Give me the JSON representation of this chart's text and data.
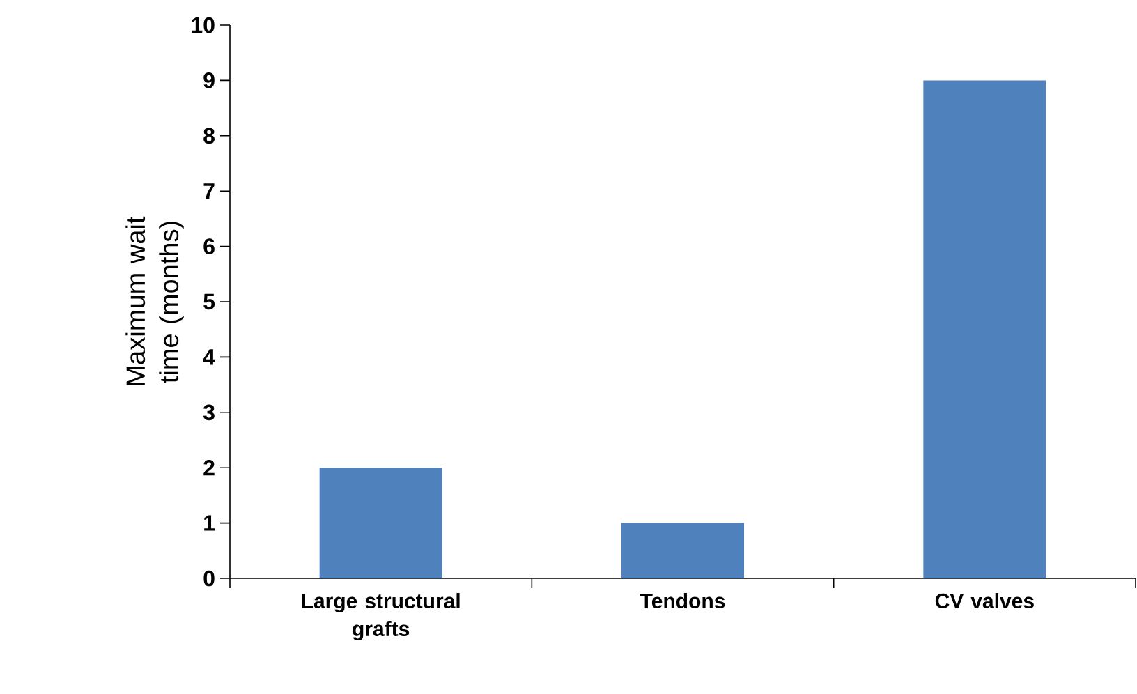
{
  "chart_data": {
    "type": "bar",
    "ylabel": "Maximum wait time (months)",
    "categories": [
      "Large structural grafts",
      "Tendons",
      "CV valves"
    ],
    "values": [
      2,
      1,
      9
    ],
    "color": "#4f81bd",
    "ylim": [
      0,
      10
    ],
    "yticks": [
      0,
      1,
      2,
      3,
      4,
      5,
      6,
      7,
      8,
      9,
      10
    ]
  }
}
